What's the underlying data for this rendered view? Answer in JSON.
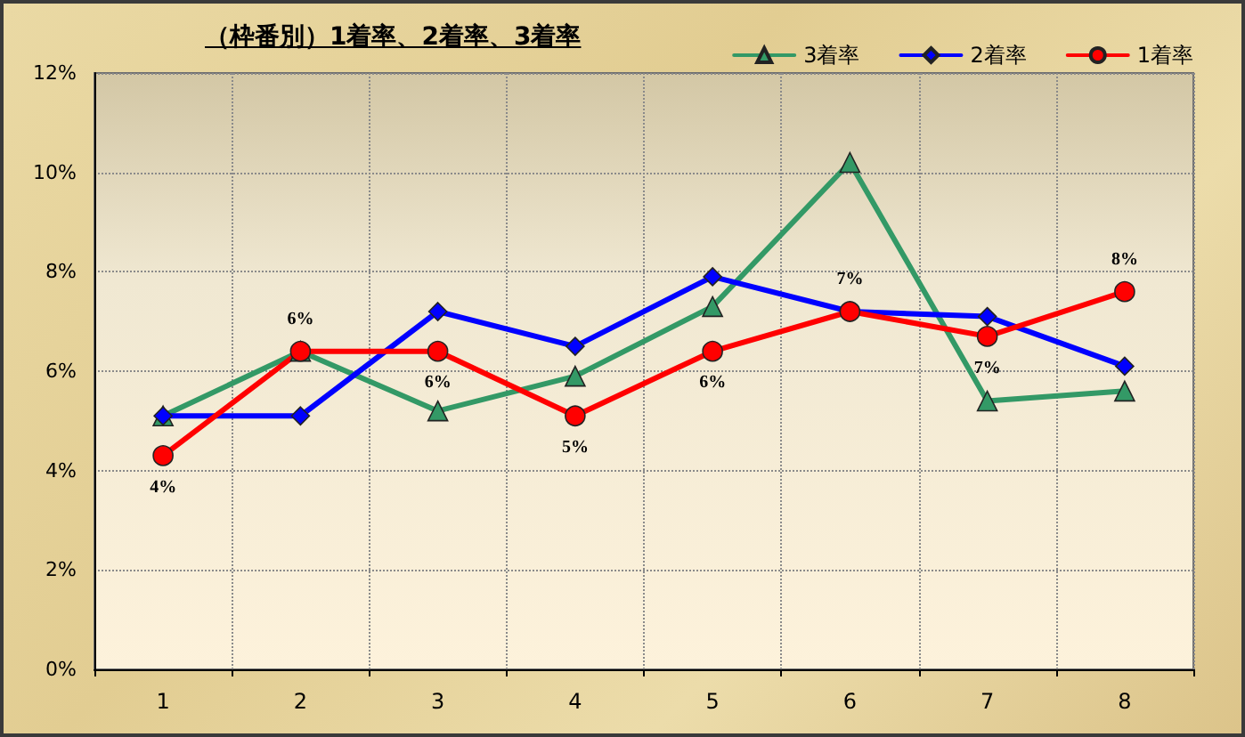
{
  "chart_data": {
    "type": "line",
    "title": "（枠番別）1着率、2着率、3着率",
    "categories": [
      "1",
      "2",
      "3",
      "4",
      "5",
      "6",
      "7",
      "8"
    ],
    "series": [
      {
        "name": "3着率",
        "color": "#339966",
        "marker": "triangle",
        "values": [
          5.1,
          6.4,
          5.2,
          5.9,
          7.3,
          10.2,
          5.4,
          5.6
        ]
      },
      {
        "name": "2着率",
        "color": "#0000ff",
        "marker": "diamond",
        "values": [
          5.1,
          5.1,
          7.2,
          6.5,
          7.9,
          7.2,
          7.1,
          6.1
        ]
      },
      {
        "name": "1着率",
        "color": "#ff0000",
        "marker": "circle",
        "values": [
          4.3,
          6.4,
          6.4,
          5.1,
          6.4,
          7.2,
          6.7,
          7.6
        ],
        "value_labels": [
          "4%",
          "6%",
          "6%",
          "5%",
          "6%",
          "7%",
          "7%",
          "8%"
        ]
      }
    ],
    "ylim": [
      0,
      12
    ],
    "yticks": [
      {
        "value": 0,
        "label": "0%"
      },
      {
        "value": 2,
        "label": "2%"
      },
      {
        "value": 4,
        "label": "4%"
      },
      {
        "value": 6,
        "label": "6%"
      },
      {
        "value": 8,
        "label": "8%"
      },
      {
        "value": 10,
        "label": "10%"
      },
      {
        "value": 12,
        "label": "12%"
      }
    ],
    "grid": true,
    "legend": "top right",
    "line_style": "solid"
  }
}
